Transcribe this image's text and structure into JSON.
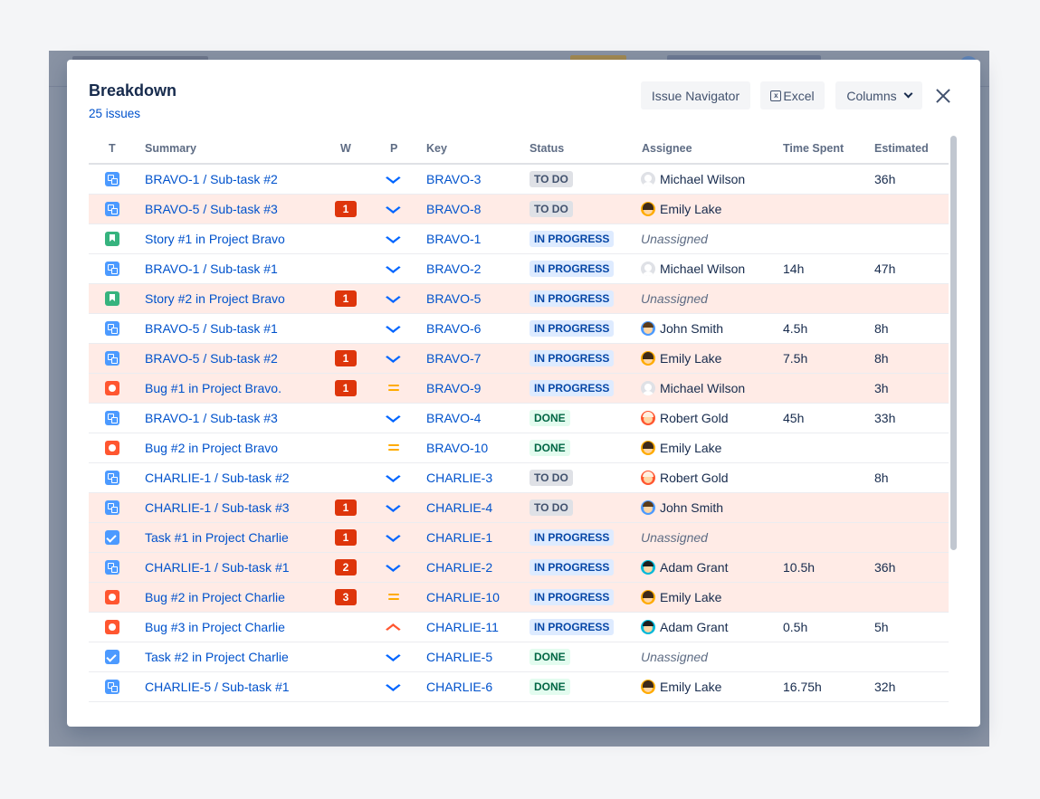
{
  "modal": {
    "title": "Breakdown",
    "issue_count": "25 issues",
    "buttons": {
      "issue_navigator": "Issue Navigator",
      "excel": "Excel",
      "columns": "Columns"
    }
  },
  "columns": {
    "type": "T",
    "summary": "Summary",
    "w": "W",
    "p": "P",
    "key": "Key",
    "status": "Status",
    "assignee": "Assignee",
    "time_spent": "Time Spent",
    "estimated": "Estimated"
  },
  "rows": [
    {
      "type": "subtask",
      "summary": "BRAVO-1 /  Sub-task #2",
      "w": "",
      "priority": "low",
      "key": "BRAVO-3",
      "status": "TO DO",
      "status_kind": "todo",
      "assignee": "Michael Wilson",
      "avatar": "default",
      "spent": "",
      "estimated": "36h",
      "highlight": false
    },
    {
      "type": "subtask",
      "summary": "BRAVO-5 /  Sub-task #3",
      "w": "1",
      "priority": "low",
      "key": "BRAVO-8",
      "status": "TO DO",
      "status_kind": "todo",
      "assignee": "Emily Lake",
      "avatar": "emily",
      "spent": "",
      "estimated": "",
      "highlight": true
    },
    {
      "type": "story",
      "summary": "Story #1 in Project Bravo",
      "w": "",
      "priority": "low",
      "key": "BRAVO-1",
      "status": "IN PROGRESS",
      "status_kind": "inprogress",
      "assignee": "Unassigned",
      "avatar": "none",
      "spent": "",
      "estimated": "",
      "highlight": false
    },
    {
      "type": "subtask",
      "summary": "BRAVO-1 /  Sub-task #1",
      "w": "",
      "priority": "low",
      "key": "BRAVO-2",
      "status": "IN PROGRESS",
      "status_kind": "inprogress",
      "assignee": "Michael Wilson",
      "avatar": "default",
      "spent": "14h",
      "estimated": "47h",
      "highlight": false
    },
    {
      "type": "story",
      "summary": "Story #2 in Project Bravo",
      "w": "1",
      "priority": "low",
      "key": "BRAVO-5",
      "status": "IN PROGRESS",
      "status_kind": "inprogress",
      "assignee": "Unassigned",
      "avatar": "none",
      "spent": "",
      "estimated": "",
      "highlight": true
    },
    {
      "type": "subtask",
      "summary": "BRAVO-5 /  Sub-task #1",
      "w": "",
      "priority": "low",
      "key": "BRAVO-6",
      "status": "IN PROGRESS",
      "status_kind": "inprogress",
      "assignee": "John Smith",
      "avatar": "john",
      "spent": "4.5h",
      "estimated": "8h",
      "highlight": false
    },
    {
      "type": "subtask",
      "summary": "BRAVO-5 /  Sub-task #2",
      "w": "1",
      "priority": "low",
      "key": "BRAVO-7",
      "status": "IN PROGRESS",
      "status_kind": "inprogress",
      "assignee": "Emily Lake",
      "avatar": "emily",
      "spent": "7.5h",
      "estimated": "8h",
      "highlight": true
    },
    {
      "type": "bug",
      "summary": "Bug #1 in Project Bravo.",
      "w": "1",
      "priority": "medium",
      "key": "BRAVO-9",
      "status": "IN PROGRESS",
      "status_kind": "inprogress",
      "assignee": "Michael Wilson",
      "avatar": "default",
      "spent": "",
      "estimated": "3h",
      "highlight": true
    },
    {
      "type": "subtask",
      "summary": "BRAVO-1 /  Sub-task #3",
      "w": "",
      "priority": "low",
      "key": "BRAVO-4",
      "status": "DONE",
      "status_kind": "done",
      "assignee": "Robert Gold",
      "avatar": "robert",
      "spent": "45h",
      "estimated": "33h",
      "highlight": false
    },
    {
      "type": "bug",
      "summary": "Bug #2 in Project Bravo",
      "w": "",
      "priority": "medium",
      "key": "BRAVO-10",
      "status": "DONE",
      "status_kind": "done",
      "assignee": "Emily Lake",
      "avatar": "emily",
      "spent": "",
      "estimated": "",
      "highlight": false
    },
    {
      "type": "subtask",
      "summary": "CHARLIE-1 /  Sub-task #2",
      "w": "",
      "priority": "low",
      "key": "CHARLIE-3",
      "status": "TO DO",
      "status_kind": "todo",
      "assignee": "Robert Gold",
      "avatar": "robert",
      "spent": "",
      "estimated": "8h",
      "highlight": false
    },
    {
      "type": "subtask",
      "summary": "CHARLIE-1 /  Sub-task #3",
      "w": "1",
      "priority": "low",
      "key": "CHARLIE-4",
      "status": "TO DO",
      "status_kind": "todo",
      "assignee": "John Smith",
      "avatar": "john",
      "spent": "",
      "estimated": "",
      "highlight": true
    },
    {
      "type": "task",
      "summary": "Task #1 in Project Charlie",
      "w": "1",
      "priority": "low",
      "key": "CHARLIE-1",
      "status": "IN PROGRESS",
      "status_kind": "inprogress",
      "assignee": "Unassigned",
      "avatar": "none",
      "spent": "",
      "estimated": "",
      "highlight": true
    },
    {
      "type": "subtask",
      "summary": "CHARLIE-1 /  Sub-task #1",
      "w": "2",
      "priority": "low",
      "key": "CHARLIE-2",
      "status": "IN PROGRESS",
      "status_kind": "inprogress",
      "assignee": "Adam Grant",
      "avatar": "adam",
      "spent": "10.5h",
      "estimated": "36h",
      "highlight": true
    },
    {
      "type": "bug",
      "summary": "Bug #2 in Project Charlie",
      "w": "3",
      "priority": "medium",
      "key": "CHARLIE-10",
      "status": "IN PROGRESS",
      "status_kind": "inprogress",
      "assignee": "Emily Lake",
      "avatar": "emily",
      "spent": "",
      "estimated": "",
      "highlight": true
    },
    {
      "type": "bug",
      "summary": "Bug #3 in Project Charlie",
      "w": "",
      "priority": "high",
      "key": "CHARLIE-11",
      "status": "IN PROGRESS",
      "status_kind": "inprogress",
      "assignee": "Adam Grant",
      "avatar": "adam",
      "spent": "0.5h",
      "estimated": "5h",
      "highlight": false
    },
    {
      "type": "task",
      "summary": "Task #2 in Project Charlie",
      "w": "",
      "priority": "low",
      "key": "CHARLIE-5",
      "status": "DONE",
      "status_kind": "done",
      "assignee": "Unassigned",
      "avatar": "none",
      "spent": "",
      "estimated": "",
      "highlight": false
    },
    {
      "type": "subtask",
      "summary": "CHARLIE-5 /  Sub-task #1",
      "w": "",
      "priority": "low",
      "key": "CHARLIE-6",
      "status": "DONE",
      "status_kind": "done",
      "assignee": "Emily Lake",
      "avatar": "emily",
      "spent": "16.75h",
      "estimated": "32h",
      "highlight": false
    }
  ]
}
